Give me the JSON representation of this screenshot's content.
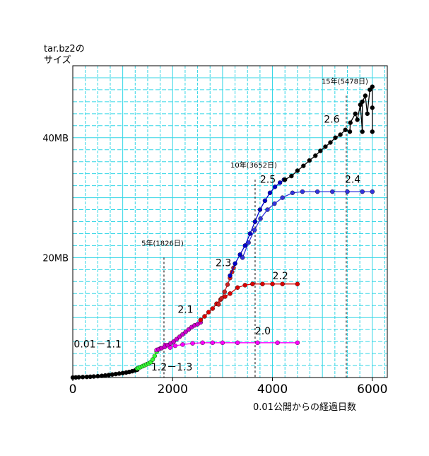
{
  "chart_data": {
    "type": "scatter",
    "ylabel_lines": [
      "tar.bz2の",
      "サイズ"
    ],
    "xlabel": "0.01公開からの経過日数",
    "xlim": [
      0,
      6300
    ],
    "ylim": [
      0,
      52
    ],
    "grid": true,
    "x_ticks": [
      {
        "value": 0,
        "label": "0"
      },
      {
        "value": 2000,
        "label": "2000"
      },
      {
        "value": 4000,
        "label": "4000"
      },
      {
        "value": 6000,
        "label": "6000"
      }
    ],
    "y_ticks": [
      {
        "value": 20,
        "label": "20MB"
      },
      {
        "value": 40,
        "label": "40MB"
      }
    ],
    "reference_lines": [
      {
        "x": 1826,
        "label": "5年(1826日)",
        "label_y": 22
      },
      {
        "x": 3652,
        "label": "10年(3652日)",
        "label_y": 35
      },
      {
        "x": 5478,
        "label": "15年(5478日)",
        "label_y": 49
      }
    ],
    "series": [
      {
        "name": "0.01－1.1",
        "color": "#000000",
        "label_at": [
          20,
          5
        ],
        "points": [
          [
            0,
            0
          ],
          [
            60,
            0.02
          ],
          [
            120,
            0.05
          ],
          [
            200,
            0.08
          ],
          [
            280,
            0.1
          ],
          [
            350,
            0.13
          ],
          [
            420,
            0.17
          ],
          [
            500,
            0.22
          ],
          [
            580,
            0.28
          ],
          [
            650,
            0.34
          ],
          [
            720,
            0.42
          ],
          [
            790,
            0.5
          ],
          [
            860,
            0.58
          ],
          [
            930,
            0.66
          ],
          [
            1000,
            0.74
          ],
          [
            1070,
            0.84
          ],
          [
            1130,
            0.93
          ],
          [
            1190,
            1.05
          ],
          [
            1250,
            1.2
          ],
          [
            1290,
            1.3
          ]
        ]
      },
      {
        "name": "1.2－1.3",
        "color": "#33ff33",
        "label_at": [
          1570,
          1.2
        ],
        "points": [
          [
            1290,
            1.5
          ],
          [
            1320,
            1.6
          ],
          [
            1360,
            1.75
          ],
          [
            1400,
            1.9
          ],
          [
            1440,
            2.05
          ],
          [
            1480,
            2.2
          ],
          [
            1520,
            2.35
          ],
          [
            1560,
            2.55
          ],
          [
            1600,
            3.0
          ],
          [
            1640,
            3.6
          ],
          [
            1680,
            4.3
          ]
        ]
      },
      {
        "name": "2.0",
        "color": "#ff00ff",
        "label_at": [
          3650,
          7.2
        ],
        "points": [
          [
            1680,
            4.6
          ],
          [
            1760,
            4.9
          ],
          [
            1850,
            5.4
          ],
          [
            1950,
            5.0
          ],
          [
            2050,
            5.3
          ],
          [
            2200,
            5.5
          ],
          [
            2400,
            5.7
          ],
          [
            2600,
            5.8
          ],
          [
            2800,
            5.8
          ],
          [
            3000,
            5.8
          ],
          [
            3300,
            5.8
          ],
          [
            3700,
            5.8
          ],
          [
            4100,
            5.8
          ],
          [
            4500,
            5.8
          ]
        ]
      },
      {
        "name": "2.1",
        "color": "#cc00cc",
        "label_at": [
          2100,
          10.8
        ],
        "points": [
          [
            1720,
            4.7
          ],
          [
            1780,
            4.9
          ],
          [
            1840,
            5.1
          ],
          [
            1900,
            5.4
          ],
          [
            1960,
            5.7
          ],
          [
            2020,
            6.0
          ],
          [
            2080,
            6.4
          ],
          [
            2140,
            6.8
          ],
          [
            2200,
            7.2
          ],
          [
            2260,
            7.6
          ],
          [
            2320,
            8.0
          ],
          [
            2380,
            8.4
          ],
          [
            2440,
            8.7
          ],
          [
            2500,
            8.9
          ],
          [
            2560,
            9.2
          ]
        ]
      },
      {
        "name": "2.2",
        "color": "#dd0000",
        "label_at": [
          4000,
          16.4
        ],
        "points": [
          [
            2560,
            9.6
          ],
          [
            2640,
            10.2
          ],
          [
            2720,
            10.9
          ],
          [
            2800,
            11.5
          ],
          [
            2880,
            12.3
          ],
          [
            2960,
            13.0
          ],
          [
            3050,
            13.5
          ],
          [
            3150,
            14.0
          ],
          [
            3300,
            15.0
          ],
          [
            3450,
            15.4
          ],
          [
            3600,
            15.6
          ],
          [
            3800,
            15.6
          ],
          [
            4000,
            15.6
          ],
          [
            4200,
            15.6
          ],
          [
            4500,
            15.6
          ]
        ]
      },
      {
        "name": "2.3",
        "color": "#cc2222",
        "label_at": [
          2860,
          18.6
        ],
        "points": [
          [
            2920,
            12.2
          ],
          [
            2980,
            13.2
          ],
          [
            3040,
            14.3
          ],
          [
            3100,
            15.5
          ],
          [
            3150,
            16.6
          ],
          [
            3190,
            17.6
          ],
          [
            3220,
            18.3
          ]
        ]
      },
      {
        "name": "2.4",
        "color": "#3333dd",
        "label_at": [
          5450,
          32.5
        ],
        "points": [
          [
            3400,
            20.0
          ],
          [
            3520,
            22.5
          ],
          [
            3640,
            24.6
          ],
          [
            3760,
            26.5
          ],
          [
            3900,
            28.0
          ],
          [
            4040,
            29.0
          ],
          [
            4200,
            30.0
          ],
          [
            4400,
            30.8
          ],
          [
            4600,
            31.0
          ],
          [
            4900,
            31.0
          ],
          [
            5200,
            31.0
          ],
          [
            5500,
            31.0
          ],
          [
            5800,
            31.0
          ],
          [
            6000,
            31.0
          ]
        ]
      },
      {
        "name": "2.5",
        "color": "#0000cc",
        "label_at": [
          3750,
          32.5
        ],
        "points": [
          [
            3150,
            17.0
          ],
          [
            3250,
            19.0
          ],
          [
            3350,
            20.5
          ],
          [
            3450,
            22.0
          ],
          [
            3550,
            24.0
          ],
          [
            3650,
            26.0
          ],
          [
            3750,
            28.0
          ],
          [
            3850,
            29.5
          ],
          [
            3950,
            30.8
          ],
          [
            4050,
            31.8
          ],
          [
            4150,
            32.5
          ],
          [
            4230,
            33.0
          ]
        ]
      },
      {
        "name": "2.6",
        "color": "#000000",
        "label_at": [
          5030,
          42.5
        ],
        "points": [
          [
            4250,
            33.0
          ],
          [
            4380,
            33.6
          ],
          [
            4500,
            34.5
          ],
          [
            4620,
            35.3
          ],
          [
            4740,
            36.2
          ],
          [
            4860,
            37.0
          ],
          [
            4960,
            37.8
          ],
          [
            5060,
            38.5
          ],
          [
            5160,
            39.2
          ],
          [
            5260,
            40.0
          ],
          [
            5360,
            40.5
          ],
          [
            5460,
            41.3
          ],
          [
            5560,
            42.5
          ],
          [
            5660,
            44.0
          ],
          [
            5760,
            45.5
          ],
          [
            5860,
            47.0
          ],
          [
            5950,
            48.0
          ],
          [
            6000,
            48.5
          ],
          [
            5550,
            41.0
          ],
          [
            5800,
            41.0
          ],
          [
            6000,
            41.0
          ],
          [
            5700,
            43.0
          ],
          [
            5900,
            44.0
          ],
          [
            6000,
            45.0
          ],
          [
            5800,
            46.0
          ]
        ]
      }
    ]
  }
}
